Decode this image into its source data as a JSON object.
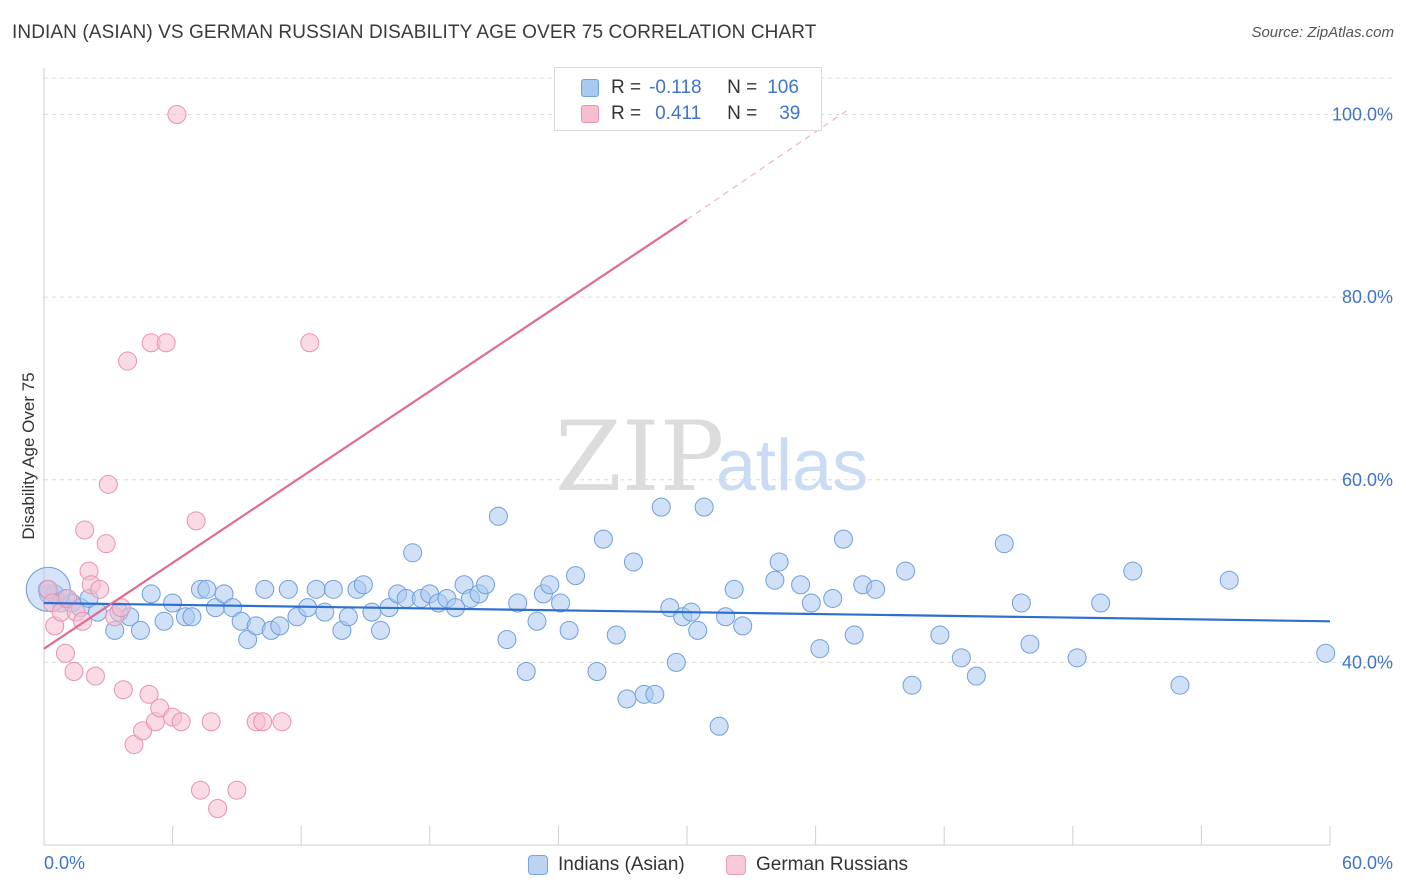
{
  "header": {
    "title": "INDIAN (ASIAN) VS GERMAN RUSSIAN DISABILITY AGE OVER 75 CORRELATION CHART",
    "source": "Source: ZipAtlas.com"
  },
  "watermark": {
    "zip": "ZIP",
    "atlas": "atlas"
  },
  "legend": {
    "rows": [
      {
        "r_label": "R =",
        "r_value": "-0.118",
        "n_label": "N =",
        "n_value": "106"
      },
      {
        "r_label": "R =",
        "r_value": "0.411",
        "n_label": "N =",
        "n_value": "39"
      }
    ],
    "bottom": [
      "Indians (Asian)",
      "German Russians"
    ]
  },
  "colors": {
    "blue_fill": "#a9c8f0",
    "blue_stroke": "#6f9fdc",
    "blue_line": "#2f6fcf",
    "pink_fill": "#f6bed0",
    "pink_stroke": "#e892ae",
    "pink_line": "#e06a92",
    "tick_text": "#3f74c9",
    "grid": "#dcdcdc"
  },
  "chart_data": {
    "type": "scatter",
    "title": "INDIAN (ASIAN) VS GERMAN RUSSIAN DISABILITY AGE OVER 75 CORRELATION CHART",
    "xlabel": "",
    "ylabel": "Disability Age Over 75",
    "xlim": [
      0,
      60
    ],
    "ylim": [
      20,
      104
    ],
    "x_tick_labels": [
      "0.0%",
      "60.0%"
    ],
    "y_ticks": [
      40,
      60,
      80,
      100
    ],
    "y_tick_labels": [
      "40.0%",
      "60.0%",
      "80.0%",
      "100.0%"
    ],
    "grid": true,
    "series": [
      {
        "name": "Indians (Asian)",
        "r": -0.118,
        "n": 106,
        "trend": {
          "x0": 0,
          "y0": 46.5,
          "x1": 60,
          "y1": 44.5
        },
        "points": [
          [
            0.2,
            47.5
          ],
          [
            0.5,
            47.5
          ],
          [
            0.8,
            46.5
          ],
          [
            1.0,
            47.0
          ],
          [
            1.3,
            46.5
          ],
          [
            1.7,
            46.0
          ],
          [
            2.1,
            47.0
          ],
          [
            2.5,
            45.5
          ],
          [
            3.3,
            43.5
          ],
          [
            3.5,
            45.5
          ],
          [
            4.0,
            45.0
          ],
          [
            4.5,
            43.5
          ],
          [
            5.0,
            47.5
          ],
          [
            5.6,
            44.5
          ],
          [
            6.0,
            46.5
          ],
          [
            6.6,
            45.0
          ],
          [
            6.9,
            45.0
          ],
          [
            7.3,
            48.0
          ],
          [
            7.6,
            48.0
          ],
          [
            8.0,
            46.0
          ],
          [
            8.4,
            47.5
          ],
          [
            8.8,
            46.0
          ],
          [
            9.2,
            44.5
          ],
          [
            9.5,
            42.5
          ],
          [
            9.9,
            44.0
          ],
          [
            10.3,
            48.0
          ],
          [
            10.6,
            43.5
          ],
          [
            11.0,
            44.0
          ],
          [
            11.4,
            48.0
          ],
          [
            11.8,
            45.0
          ],
          [
            12.3,
            46.0
          ],
          [
            12.7,
            48.0
          ],
          [
            13.1,
            45.5
          ],
          [
            13.5,
            48.0
          ],
          [
            13.9,
            43.5
          ],
          [
            14.2,
            45.0
          ],
          [
            14.6,
            48.0
          ],
          [
            14.9,
            48.5
          ],
          [
            15.3,
            45.5
          ],
          [
            15.7,
            43.5
          ],
          [
            16.1,
            46.0
          ],
          [
            16.5,
            47.5
          ],
          [
            16.9,
            47.0
          ],
          [
            17.2,
            52.0
          ],
          [
            17.6,
            47.0
          ],
          [
            18.0,
            47.5
          ],
          [
            18.4,
            46.5
          ],
          [
            18.8,
            47.0
          ],
          [
            19.2,
            46.0
          ],
          [
            19.6,
            48.5
          ],
          [
            19.9,
            47.0
          ],
          [
            20.3,
            47.5
          ],
          [
            20.6,
            48.5
          ],
          [
            21.2,
            56.0
          ],
          [
            21.6,
            42.5
          ],
          [
            22.1,
            46.5
          ],
          [
            22.5,
            39.0
          ],
          [
            23.0,
            44.5
          ],
          [
            23.3,
            47.5
          ],
          [
            23.6,
            48.5
          ],
          [
            24.1,
            46.5
          ],
          [
            24.5,
            43.5
          ],
          [
            24.8,
            49.5
          ],
          [
            25.8,
            39.0
          ],
          [
            26.1,
            53.5
          ],
          [
            26.7,
            43.0
          ],
          [
            27.2,
            36.0
          ],
          [
            27.5,
            51.0
          ],
          [
            28.0,
            36.5
          ],
          [
            28.5,
            36.5
          ],
          [
            28.8,
            57.0
          ],
          [
            29.2,
            46.0
          ],
          [
            29.5,
            40.0
          ],
          [
            29.8,
            45.0
          ],
          [
            30.2,
            45.5
          ],
          [
            30.5,
            43.5
          ],
          [
            30.8,
            57.0
          ],
          [
            31.5,
            33.0
          ],
          [
            31.8,
            45.0
          ],
          [
            32.2,
            48.0
          ],
          [
            32.6,
            44.0
          ],
          [
            34.1,
            49.0
          ],
          [
            34.3,
            51.0
          ],
          [
            35.3,
            48.5
          ],
          [
            35.8,
            46.5
          ],
          [
            36.2,
            41.5
          ],
          [
            36.8,
            47.0
          ],
          [
            37.3,
            53.5
          ],
          [
            37.8,
            43.0
          ],
          [
            38.2,
            48.5
          ],
          [
            38.8,
            48.0
          ],
          [
            40.2,
            50.0
          ],
          [
            40.5,
            37.5
          ],
          [
            41.8,
            43.0
          ],
          [
            42.8,
            40.5
          ],
          [
            43.5,
            38.5
          ],
          [
            44.8,
            53.0
          ],
          [
            45.6,
            46.5
          ],
          [
            46.0,
            42.0
          ],
          [
            48.2,
            40.5
          ],
          [
            49.3,
            46.5
          ],
          [
            50.8,
            50.0
          ],
          [
            53.0,
            37.5
          ],
          [
            55.3,
            49.0
          ],
          [
            59.8,
            41.0
          ],
          [
            0.15,
            48.0
          ]
        ]
      },
      {
        "name": "German Russians",
        "r": 0.411,
        "n": 39,
        "trend": {
          "x0": 0,
          "y0": 41.5,
          "x1": 30,
          "y1": 88.5,
          "dashed_to": {
            "x": 37.5,
            "y": 100.5
          }
        },
        "points": [
          [
            0.2,
            48.0
          ],
          [
            0.4,
            46.5
          ],
          [
            0.5,
            44.0
          ],
          [
            0.8,
            45.5
          ],
          [
            1.0,
            41.0
          ],
          [
            1.1,
            47.0
          ],
          [
            1.4,
            39.0
          ],
          [
            1.5,
            45.5
          ],
          [
            1.8,
            44.5
          ],
          [
            1.9,
            54.5
          ],
          [
            2.1,
            50.0
          ],
          [
            2.2,
            48.5
          ],
          [
            2.4,
            38.5
          ],
          [
            2.6,
            48.0
          ],
          [
            2.9,
            53.0
          ],
          [
            3.0,
            59.5
          ],
          [
            3.3,
            45.0
          ],
          [
            3.6,
            46.0
          ],
          [
            3.7,
            37.0
          ],
          [
            3.9,
            73.0
          ],
          [
            4.2,
            31.0
          ],
          [
            4.6,
            32.5
          ],
          [
            4.9,
            36.5
          ],
          [
            5.0,
            75.0
          ],
          [
            5.2,
            33.5
          ],
          [
            5.4,
            35.0
          ],
          [
            5.7,
            75.0
          ],
          [
            6.0,
            34.0
          ],
          [
            6.2,
            100.0
          ],
          [
            6.4,
            33.5
          ],
          [
            7.1,
            55.5
          ],
          [
            7.3,
            26.0
          ],
          [
            7.8,
            33.5
          ],
          [
            8.1,
            24.0
          ],
          [
            9.0,
            26.0
          ],
          [
            9.9,
            33.5
          ],
          [
            10.2,
            33.5
          ],
          [
            11.1,
            33.5
          ],
          [
            12.4,
            75.0
          ]
        ]
      }
    ]
  }
}
